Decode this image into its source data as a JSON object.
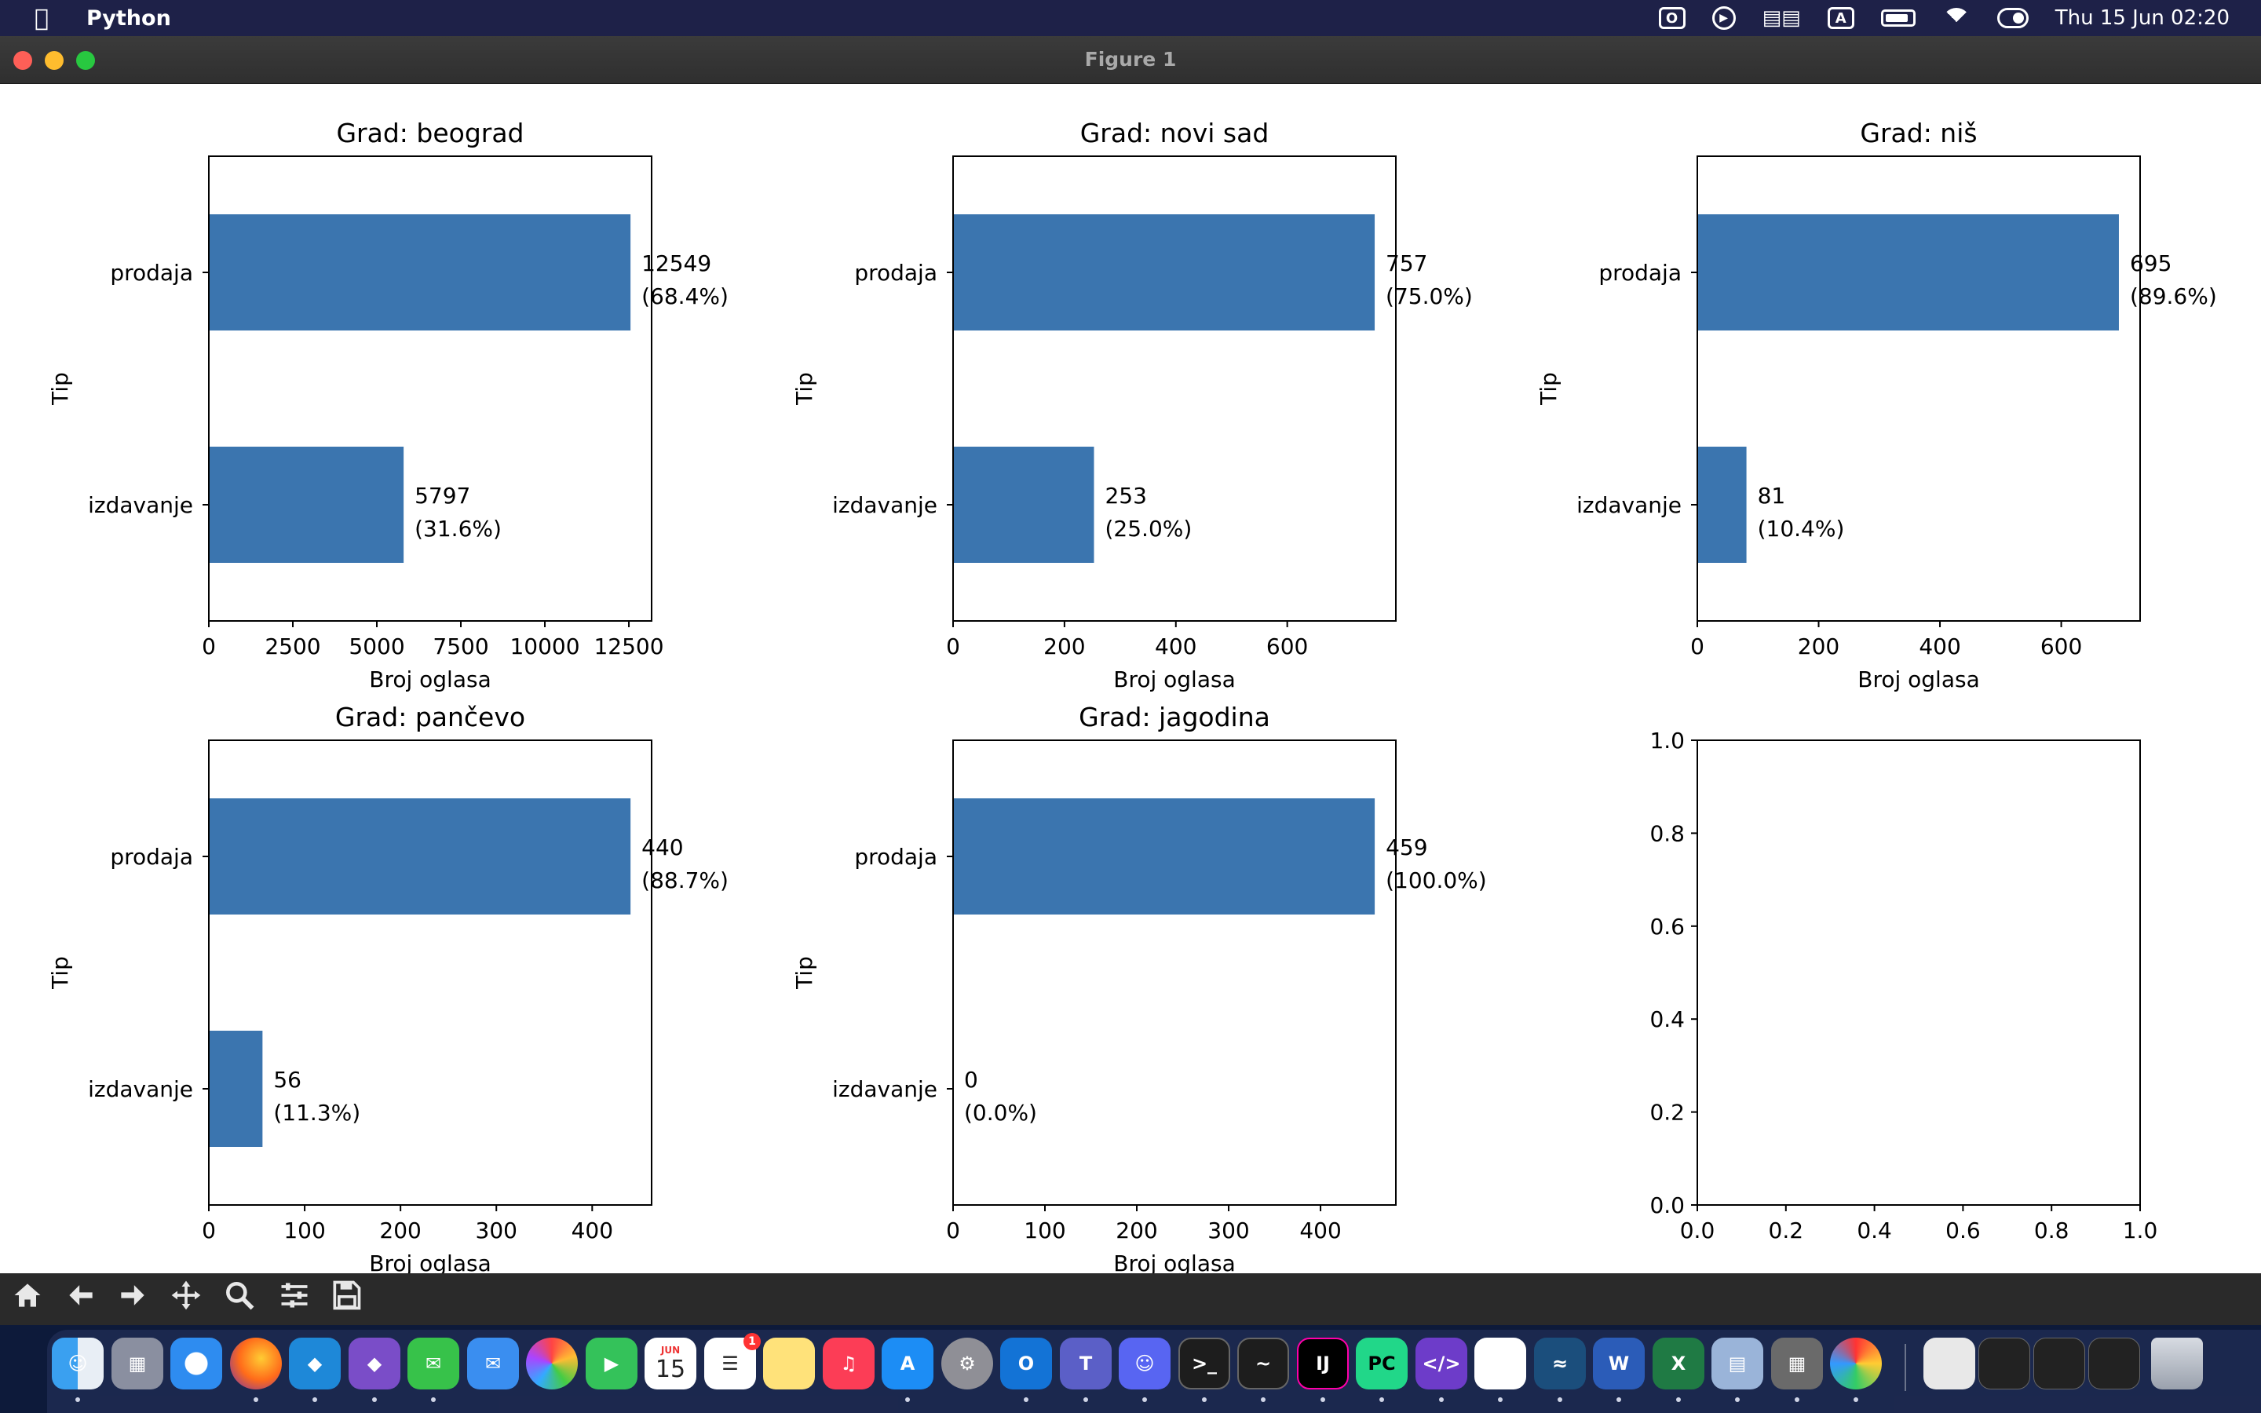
{
  "menubar": {
    "app_name": "Python",
    "clock": "Thu 15 Jun  02:20",
    "input_indicator": "A"
  },
  "window": {
    "title": "Figure 1"
  },
  "colors": {
    "bar": "#3b75af",
    "toolbar": "#2a2a2a",
    "menubar": "#1e2148"
  },
  "chart_data": [
    {
      "type": "bar",
      "orientation": "horizontal",
      "title": "Grad: beograd",
      "categories": [
        "prodaja",
        "izdavanje"
      ],
      "values": [
        12549,
        5797
      ],
      "labels": [
        [
          "12549",
          "(68.4%)"
        ],
        [
          "5797",
          "(31.6%)"
        ]
      ],
      "xlabel": "Broj oglasa",
      "ylabel": "Tip",
      "xlim": [
        0,
        13177
      ],
      "xticks": [
        0,
        2500,
        5000,
        7500,
        10000,
        12500
      ],
      "xticklabels": [
        "0",
        "2500",
        "5000",
        "7500",
        "10000",
        "12500"
      ]
    },
    {
      "type": "bar",
      "orientation": "horizontal",
      "title": "Grad: novi sad",
      "categories": [
        "prodaja",
        "izdavanje"
      ],
      "values": [
        757,
        253
      ],
      "labels": [
        [
          "757",
          "(75.0%)"
        ],
        [
          "253",
          "(25.0%)"
        ]
      ],
      "xlabel": "Broj oglasa",
      "ylabel": "Tip",
      "xlim": [
        0,
        795
      ],
      "xticks": [
        0,
        200,
        400,
        600
      ],
      "xticklabels": [
        "0",
        "200",
        "400",
        "600"
      ]
    },
    {
      "type": "bar",
      "orientation": "horizontal",
      "title": "Grad: niš",
      "categories": [
        "prodaja",
        "izdavanje"
      ],
      "values": [
        695,
        81
      ],
      "labels": [
        [
          "695",
          "(89.6%)"
        ],
        [
          "81",
          "(10.4%)"
        ]
      ],
      "xlabel": "Broj oglasa",
      "ylabel": "Tip",
      "xlim": [
        0,
        730
      ],
      "xticks": [
        0,
        200,
        400,
        600
      ],
      "xticklabels": [
        "0",
        "200",
        "400",
        "600"
      ]
    },
    {
      "type": "bar",
      "orientation": "horizontal",
      "title": "Grad: pančevo",
      "categories": [
        "prodaja",
        "izdavanje"
      ],
      "values": [
        440,
        56
      ],
      "labels": [
        [
          "440",
          "(88.7%)"
        ],
        [
          "56",
          "(11.3%)"
        ]
      ],
      "xlabel": "Broj oglasa",
      "ylabel": "Tip",
      "xlim": [
        0,
        462
      ],
      "xticks": [
        0,
        100,
        200,
        300,
        400
      ],
      "xticklabels": [
        "0",
        "100",
        "200",
        "300",
        "400"
      ]
    },
    {
      "type": "bar",
      "orientation": "horizontal",
      "title": "Grad: jagodina",
      "categories": [
        "prodaja",
        "izdavanje"
      ],
      "values": [
        459,
        0
      ],
      "labels": [
        [
          "459",
          "(100.0%)"
        ],
        [
          "0",
          "(0.0%)"
        ]
      ],
      "xlabel": "Broj oglasa",
      "ylabel": "Tip",
      "xlim": [
        0,
        482
      ],
      "xticks": [
        0,
        100,
        200,
        300,
        400
      ],
      "xticklabels": [
        "0",
        "100",
        "200",
        "300",
        "400"
      ]
    },
    {
      "type": "empty",
      "title": "",
      "xlim": [
        0,
        1
      ],
      "ylim": [
        0,
        1
      ],
      "xticks": [
        0,
        0.2,
        0.4,
        0.6,
        0.8,
        1.0
      ],
      "yticks": [
        0,
        0.2,
        0.4,
        0.6,
        0.8,
        1.0
      ],
      "xticklabels": [
        "0.0",
        "0.2",
        "0.4",
        "0.6",
        "0.8",
        "1.0"
      ],
      "yticklabels": [
        "0.0",
        "0.2",
        "0.4",
        "0.6",
        "0.8",
        "1.0"
      ]
    }
  ],
  "toolbar": {
    "buttons": [
      "home-icon",
      "back-icon",
      "forward-icon",
      "pan-icon",
      "zoom-icon",
      "configure-icon",
      "save-icon"
    ]
  },
  "dock": {
    "apps": [
      "Finder",
      "Launchpad",
      "Safari",
      "Firefox",
      "VS Code",
      "Visual Studio",
      "Messages",
      "Mail",
      "Photos",
      "FaceTime",
      "Calendar",
      "Reminders",
      "Notes",
      "Music",
      "App Store",
      "System Settings",
      "Outlook",
      "Teams",
      "Discord",
      "Terminal",
      "Activity Monitor",
      "IntelliJ IDEA",
      "PyCharm",
      "Script Editor",
      "Slack",
      "MySQL Workbench",
      "Word",
      "Excel",
      "Preview",
      "Calculator",
      "Pinwheel"
    ],
    "calendar_month": "JUN",
    "calendar_day": "15",
    "reminders_badge": "1"
  }
}
